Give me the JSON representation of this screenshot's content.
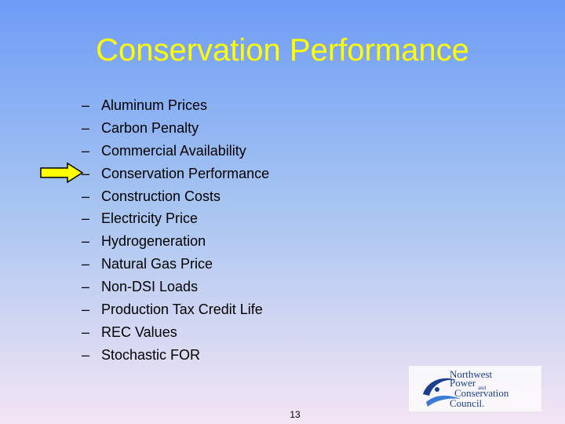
{
  "slide": {
    "title": "Conservation Performance",
    "bullet": "–",
    "items": [
      "Aluminum Prices",
      "Carbon Penalty",
      "Commercial Availability",
      "Conservation Performance",
      "Construction Costs",
      "Electricity Price",
      "Hydrogeneration",
      "Natural Gas Price",
      "Non-DSI Loads",
      "Production Tax Credit Life",
      "REC Values",
      "Stochastic FOR"
    ],
    "logo": {
      "lines": [
        "Northwest",
        "Power",
        "and",
        "Conservation",
        "Council."
      ]
    },
    "page_number": "13"
  }
}
